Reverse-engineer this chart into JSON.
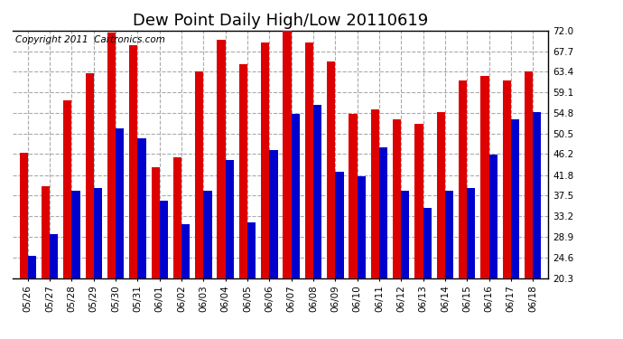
{
  "title": "Dew Point Daily High/Low 20110619",
  "copyright": "Copyright 2011  Cartronics.com",
  "dates": [
    "05/26",
    "05/27",
    "05/28",
    "05/29",
    "05/30",
    "05/31",
    "06/01",
    "06/02",
    "06/03",
    "06/04",
    "06/05",
    "06/06",
    "06/07",
    "06/08",
    "06/09",
    "06/10",
    "06/11",
    "06/12",
    "06/13",
    "06/14",
    "06/15",
    "06/16",
    "06/17",
    "06/18"
  ],
  "highs": [
    46.5,
    39.5,
    57.5,
    63.0,
    71.5,
    69.0,
    43.5,
    45.5,
    63.5,
    70.0,
    65.0,
    69.5,
    73.0,
    69.5,
    65.5,
    54.5,
    55.5,
    53.5,
    52.5,
    55.0,
    61.5,
    62.5,
    61.5,
    63.5
  ],
  "lows": [
    25.0,
    29.5,
    38.5,
    39.0,
    51.5,
    49.5,
    36.5,
    31.5,
    38.5,
    45.0,
    32.0,
    47.0,
    54.5,
    56.5,
    42.5,
    41.5,
    47.5,
    38.5,
    35.0,
    38.5,
    39.0,
    46.0,
    53.5,
    55.0
  ],
  "high_color": "#dd0000",
  "low_color": "#0000cc",
  "bg_color": "#ffffff",
  "plot_bg_color": "#ffffff",
  "grid_color": "#aaaaaa",
  "ymin": 20.3,
  "ymax": 72.0,
  "yticks": [
    20.3,
    24.6,
    28.9,
    33.2,
    37.5,
    41.8,
    46.2,
    50.5,
    54.8,
    59.1,
    63.4,
    67.7,
    72.0
  ],
  "title_fontsize": 13,
  "copyright_fontsize": 7.5,
  "tick_fontsize": 7.5,
  "bar_width": 0.38
}
